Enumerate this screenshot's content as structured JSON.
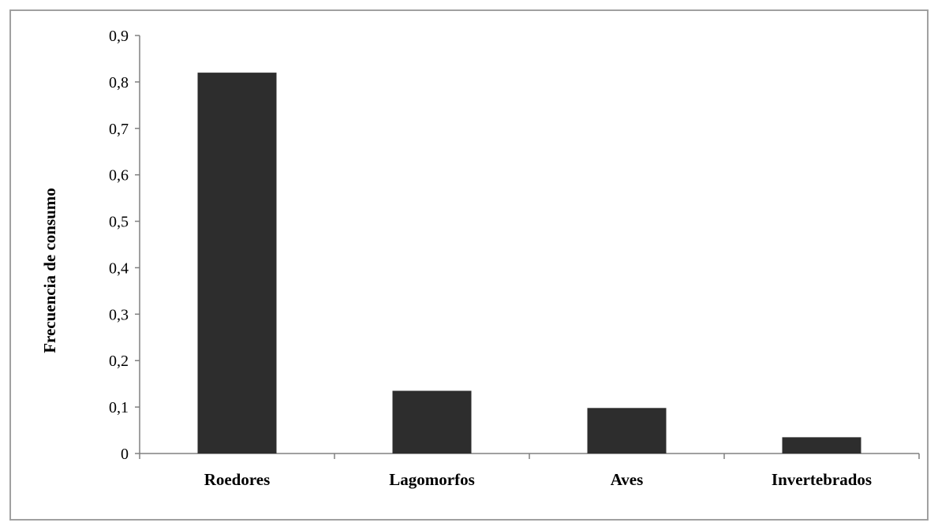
{
  "chart_data": {
    "type": "bar",
    "title": "",
    "xlabel": "",
    "ylabel": "Frecuencia de consumo",
    "categories": [
      "Roedores",
      "Lagomorfos",
      "Aves",
      "Invertebrados"
    ],
    "values": [
      0.82,
      0.135,
      0.098,
      0.035
    ],
    "ylim": [
      0,
      0.9
    ],
    "yticks": [
      0,
      0.1,
      0.2,
      0.3,
      0.4,
      0.5,
      0.6,
      0.7,
      0.8,
      0.9
    ],
    "ytick_labels": [
      "0",
      "0,1",
      "0,2",
      "0,3",
      "0,4",
      "0,5",
      "0,6",
      "0,7",
      "0,8",
      "0,9"
    ],
    "grid": false,
    "legend": "none",
    "bar_color": "#2d2d2d",
    "axis_color": "#808080"
  }
}
